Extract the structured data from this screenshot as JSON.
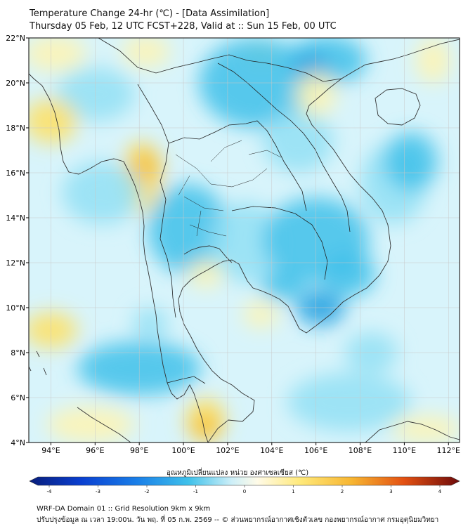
{
  "header": {
    "title": "Temperature Change 24-hr (℃) - [Data Assimilation]",
    "subtitle": "Thursday 05 Feb, 12 UTC FCST+228, Valid at :: Sun 15 Feb, 00 UTC"
  },
  "map": {
    "lat_range": [
      4,
      22
    ],
    "lon_range": [
      93,
      112.5
    ],
    "lat_ticks": [
      "22°N",
      "20°N",
      "18°N",
      "16°N",
      "14°N",
      "12°N",
      "10°N",
      "8°N",
      "6°N",
      "4°N"
    ],
    "lat_values": [
      22,
      20,
      18,
      16,
      14,
      12,
      10,
      8,
      6,
      4
    ],
    "lon_ticks": [
      "94°E",
      "96°E",
      "98°E",
      "100°E",
      "102°E",
      "104°E",
      "106°E",
      "108°E",
      "110°E",
      "112°E"
    ],
    "lon_values": [
      94,
      96,
      98,
      100,
      102,
      104,
      106,
      108,
      110,
      112
    ],
    "grid": true,
    "colors": {
      "background": "#d8f4fb",
      "cool_light": "#93e1f4",
      "cool": "#3fc1ea",
      "cool_strong": "#1f9fe0",
      "warm_light": "#fff4b0",
      "warm": "#ffe060",
      "warm_strong": "#f7c13a",
      "coastline": "#333333",
      "border": "#222222"
    }
  },
  "colorbar": {
    "title": "อุณหภูมิเปลี่ยนแปลง หน่วย องศาเซลเซียส (℃)",
    "min": -4,
    "max": 4,
    "tick_labels": [
      "-4",
      "-3",
      "-2",
      "-1",
      "0",
      "1",
      "2",
      "3",
      "4"
    ],
    "tick_values": [
      -4,
      -3,
      -2,
      -1,
      0,
      1,
      2,
      3,
      4
    ]
  },
  "footer": {
    "line1": "WRF-DA Domain 01 :: Grid Resolution 9km x 9km",
    "line2": "ปรับปรุงข้อมูล ณ เวลา 19:00น. วัน พฤ. ที่ 05 ก.พ. 2569 -- © ส่วนพยากรณ์อากาศเชิงตัวเลข กองพยากรณ์อากาศ กรมอุตุนิยมวิทยา"
  }
}
